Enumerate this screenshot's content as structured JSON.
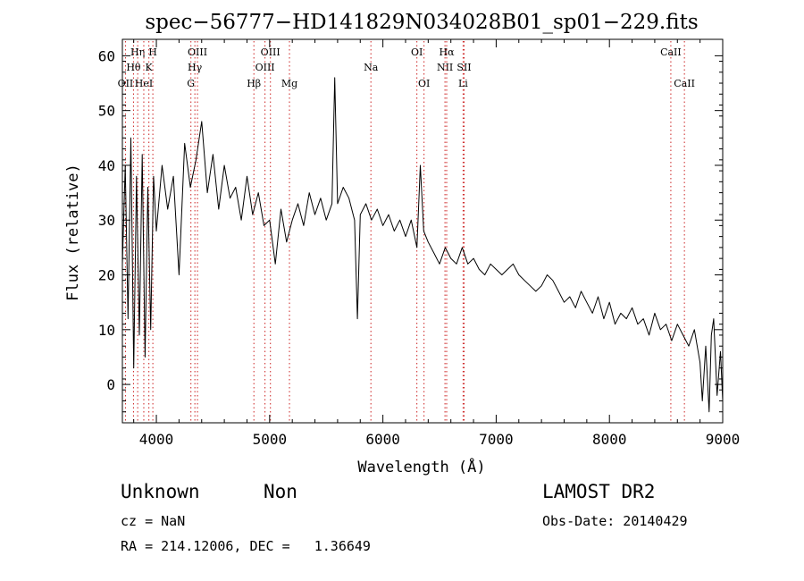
{
  "chart_data": {
    "type": "line",
    "title": "spec−56777−HD141829N034028B01_sp01−229.fits",
    "xlabel": "Wavelength (Å)",
    "ylabel": "Flux (relative)",
    "xlim": [
      3700,
      9000
    ],
    "ylim": [
      -7,
      63
    ],
    "xticks": [
      4000,
      5000,
      6000,
      7000,
      8000,
      9000
    ],
    "yticks": [
      0,
      10,
      20,
      30,
      40,
      50,
      60
    ],
    "grid": false,
    "line_color": "#000000",
    "marker_color": "#cc2222",
    "series": [
      {
        "x": [
          3700,
          3725,
          3750,
          3775,
          3800,
          3825,
          3850,
          3875,
          3900,
          3925,
          3950,
          3975,
          4000,
          4050,
          4100,
          4150,
          4200,
          4250,
          4300,
          4350,
          4400,
          4450,
          4500,
          4550,
          4600,
          4650,
          4700,
          4750,
          4800,
          4850,
          4900,
          4950,
          5000,
          5050,
          5100,
          5150,
          5200,
          5250,
          5300,
          5350,
          5400,
          5450,
          5500,
          5550,
          5575,
          5600,
          5650,
          5700,
          5750,
          5775,
          5800,
          5850,
          5900,
          5950,
          6000,
          6050,
          6100,
          6150,
          6200,
          6250,
          6300,
          6330,
          6360,
          6400,
          6450,
          6500,
          6550,
          6600,
          6650,
          6700,
          6750,
          6800,
          6850,
          6900,
          6950,
          7000,
          7050,
          7100,
          7150,
          7200,
          7250,
          7300,
          7350,
          7400,
          7450,
          7500,
          7550,
          7600,
          7650,
          7700,
          7750,
          7800,
          7850,
          7900,
          7950,
          8000,
          8050,
          8100,
          8150,
          8200,
          8250,
          8300,
          8350,
          8400,
          8450,
          8500,
          8550,
          8600,
          8650,
          8700,
          8750,
          8800,
          8820,
          8850,
          8880,
          8900,
          8920,
          8950,
          8980,
          9000
        ],
        "y": [
          22,
          40,
          12,
          45,
          3,
          38,
          9,
          42,
          5,
          36,
          10,
          38,
          28,
          40,
          32,
          38,
          20,
          44,
          36,
          41,
          48,
          35,
          42,
          32,
          40,
          34,
          36,
          30,
          38,
          31,
          35,
          29,
          30,
          22,
          32,
          26,
          30,
          33,
          29,
          35,
          31,
          34,
          30,
          33,
          56,
          33,
          36,
          34,
          30,
          12,
          31,
          33,
          30,
          32,
          29,
          31,
          28,
          30,
          27,
          30,
          25,
          40,
          28,
          26,
          24,
          22,
          25,
          23,
          22,
          25,
          22,
          23,
          21,
          20,
          22,
          21,
          20,
          21,
          22,
          20,
          19,
          18,
          17,
          18,
          20,
          19,
          17,
          15,
          16,
          14,
          17,
          15,
          13,
          16,
          12,
          15,
          11,
          13,
          12,
          14,
          11,
          12,
          9,
          13,
          10,
          11,
          8,
          11,
          9,
          7,
          10,
          4,
          -3,
          7,
          -5,
          9,
          12,
          -2,
          6,
          -3
        ]
      }
    ],
    "lines": [
      {
        "label": "OII",
        "wavelength": 3727,
        "row": 3
      },
      {
        "label": "Hθ",
        "wavelength": 3798,
        "row": 2
      },
      {
        "label": "Hη",
        "wavelength": 3835,
        "row": 1
      },
      {
        "label": "HeI",
        "wavelength": 3889,
        "row": 3
      },
      {
        "label": "K",
        "wavelength": 3934,
        "row": 2
      },
      {
        "label": "H",
        "wavelength": 3969,
        "row": 1
      },
      {
        "label": "G",
        "wavelength": 4305,
        "row": 3
      },
      {
        "label": "Hγ",
        "wavelength": 4340,
        "row": 2
      },
      {
        "label": "OIII",
        "wavelength": 4363,
        "row": 1
      },
      {
        "label": "Hβ",
        "wavelength": 4861,
        "row": 3
      },
      {
        "label": "OIII",
        "wavelength": 4959,
        "row": 2
      },
      {
        "label": "OIII",
        "wavelength": 5007,
        "row": 1
      },
      {
        "label": "Mg",
        "wavelength": 5175,
        "row": 3
      },
      {
        "label": "Na",
        "wavelength": 5894,
        "row": 2
      },
      {
        "label": "OI",
        "wavelength": 6300,
        "row": 1
      },
      {
        "label": "OI",
        "wavelength": 6363,
        "row": 3
      },
      {
        "label": "NII",
        "wavelength": 6548,
        "row": 2
      },
      {
        "label": "Hα",
        "wavelength": 6563,
        "row": 1
      },
      {
        "label": "SII",
        "wavelength": 6717,
        "row": 2
      },
      {
        "label": "Li",
        "wavelength": 6708,
        "row": 3
      },
      {
        "label": "CaII",
        "wavelength": 8542,
        "row": 1
      },
      {
        "label": "CaII",
        "wavelength": 8662,
        "row": 3
      }
    ]
  },
  "info": {
    "class": "Unknown",
    "subclass": "Non",
    "cz": "cz = NaN",
    "coords": "RA = 214.12006, DEC =   1.36649",
    "survey": "LAMOST DR2",
    "obs_date": "Obs-Date: 20140429"
  }
}
